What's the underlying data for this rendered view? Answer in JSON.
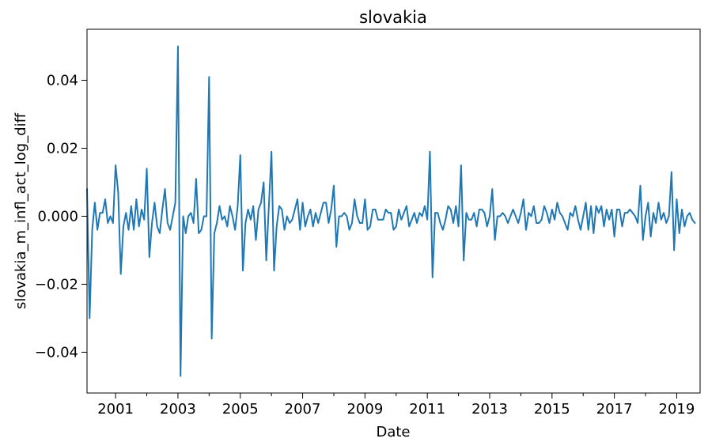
{
  "chart_data": {
    "type": "line",
    "title": "slovakia",
    "xlabel": "Date",
    "ylabel": "slovakia_m_infl_act_log_diff",
    "x_major_ticks": [
      "2001",
      "2003",
      "2005",
      "2007",
      "2009",
      "2011",
      "2013",
      "2015",
      "2017",
      "2019"
    ],
    "y_ticks": [
      "−0.04",
      "−0.02",
      "0.000",
      "0.02",
      "0.04"
    ],
    "y_tick_values": [
      -0.04,
      -0.02,
      0.0,
      0.02,
      0.04
    ],
    "xlim": [
      "2000-02",
      "2019-10"
    ],
    "ylim": [
      -0.052,
      0.055
    ],
    "grid": false,
    "series": [
      {
        "color": "#1f77b4",
        "start": "2000-02",
        "frequency": "monthly",
        "values": [
          0.008,
          -0.03,
          -0.004,
          0.004,
          -0.004,
          0.001,
          0.001,
          0.005,
          -0.002,
          0.0,
          -0.002,
          0.015,
          0.007,
          -0.017,
          -0.003,
          0.001,
          -0.004,
          0.003,
          -0.004,
          0.005,
          -0.003,
          0.002,
          -0.001,
          0.014,
          -0.012,
          -0.002,
          0.004,
          -0.003,
          -0.005,
          0.002,
          0.008,
          -0.002,
          -0.004,
          0.0,
          0.004,
          0.05,
          -0.047,
          0.0,
          -0.005,
          0.0,
          0.001,
          -0.002,
          0.011,
          -0.005,
          -0.004,
          0.0,
          0.0,
          0.041,
          -0.036,
          -0.005,
          -0.002,
          0.003,
          -0.001,
          0.0,
          -0.003,
          0.003,
          0.0,
          -0.004,
          0.003,
          0.018,
          -0.016,
          -0.002,
          0.002,
          -0.001,
          0.003,
          -0.007,
          0.002,
          0.004,
          0.01,
          -0.013,
          0.003,
          0.019,
          -0.016,
          -0.003,
          0.003,
          0.002,
          -0.004,
          0.0,
          -0.002,
          -0.001,
          0.002,
          0.005,
          -0.004,
          0.004,
          -0.003,
          0.0,
          0.002,
          -0.003,
          0.001,
          -0.002,
          0.001,
          0.004,
          0.004,
          -0.002,
          0.002,
          0.009,
          -0.009,
          0.0,
          0.0,
          0.001,
          0.0,
          -0.004,
          -0.002,
          0.005,
          0.0,
          -0.002,
          -0.002,
          0.005,
          -0.004,
          -0.003,
          0.002,
          0.002,
          -0.001,
          -0.001,
          -0.001,
          0.002,
          0.001,
          0.001,
          -0.004,
          -0.003,
          0.002,
          -0.001,
          0.001,
          0.003,
          -0.003,
          -0.001,
          0.001,
          -0.002,
          0.001,
          0.0,
          0.003,
          -0.001,
          0.019,
          -0.018,
          0.001,
          0.001,
          -0.002,
          -0.004,
          -0.001,
          0.003,
          0.002,
          -0.002,
          0.003,
          -0.003,
          0.015,
          -0.013,
          0.001,
          -0.001,
          -0.001,
          0.001,
          -0.003,
          0.002,
          0.002,
          0.001,
          -0.003,
          0.0,
          0.008,
          -0.007,
          0.0,
          0.0,
          0.001,
          0.0,
          -0.002,
          0.0,
          0.002,
          0.0,
          -0.002,
          0.001,
          0.005,
          -0.004,
          0.001,
          0.0,
          0.003,
          -0.002,
          -0.002,
          -0.001,
          0.003,
          0.001,
          -0.002,
          0.002,
          -0.001,
          0.004,
          0.001,
          0.0,
          -0.002,
          -0.004,
          0.001,
          0.0,
          0.003,
          -0.001,
          -0.004,
          0.0,
          0.004,
          -0.004,
          0.003,
          -0.005,
          0.003,
          0.001,
          0.003,
          -0.003,
          0.002,
          -0.001,
          0.002,
          -0.006,
          0.002,
          0.002,
          -0.003,
          0.001,
          0.001,
          0.002,
          0.001,
          0.0,
          -0.002,
          0.009,
          -0.007,
          0.0,
          0.004,
          -0.006,
          0.001,
          -0.002,
          0.004,
          -0.001,
          0.001,
          -0.002,
          0.0,
          0.013,
          -0.01,
          0.005,
          -0.005,
          0.002,
          -0.003,
          0.0,
          0.001,
          -0.001,
          -0.002
        ]
      }
    ]
  }
}
